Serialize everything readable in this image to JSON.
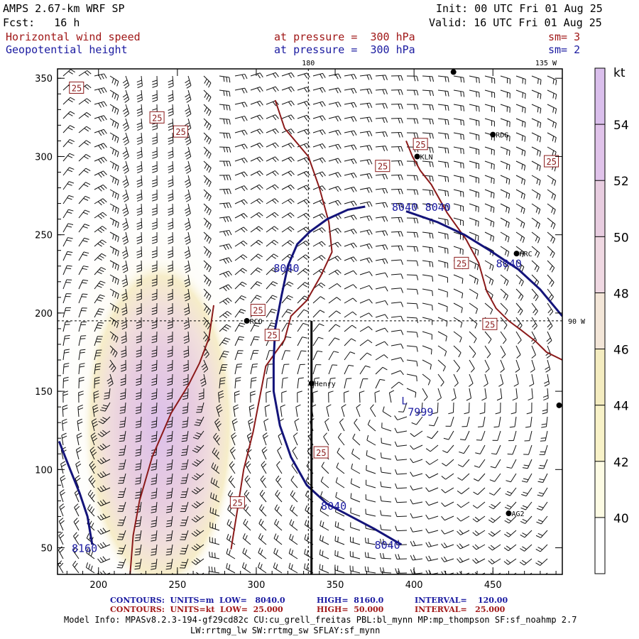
{
  "header": {
    "title": "AMPS 2.67-km WRF SP",
    "init": "Init: 00 UTC Fri 01 Aug 25",
    "fcst": "Fcst:   16 h",
    "valid": "Valid: 16 UTC Fri 01 Aug 25",
    "field1": "Horizontal wind speed",
    "field1_level": "at pressure =  300 hPa",
    "field1_sm": "sm= 3",
    "field2": "Geopotential height",
    "field2_level": "at pressure =  300 hPa",
    "field2_sm": "sm= 2"
  },
  "colors": {
    "height_contour": "#14147a",
    "speed_contour": "#8b1a1a",
    "accent_red": "#a01818",
    "accent_blue": "#1a1aa0"
  },
  "chart_data": {
    "type": "contour",
    "xlim": [
      174,
      494
    ],
    "ylim": [
      33,
      356
    ],
    "xticks": [
      200,
      250,
      300,
      350,
      400,
      450
    ],
    "yticks": [
      50,
      100,
      150,
      200,
      250,
      300,
      350
    ],
    "meridian_labels": [
      "180",
      "135 W",
      "90 W"
    ],
    "meridian_180_x": 333,
    "latline_y": 195,
    "cross_section_x": 335,
    "colorbar": {
      "unit": "kt",
      "levels": [
        38,
        40,
        42,
        44,
        46,
        48,
        50,
        52,
        54,
        56
      ],
      "labels": [
        "40",
        "42",
        "44",
        "46",
        "48",
        "50",
        "52",
        "54"
      ],
      "colors": [
        "#ffffff",
        "#fdfbe4",
        "#f8f2c8",
        "#f4ecc0",
        "#f3e6d8",
        "#efd8e2",
        "#e8cde0",
        "#e0c3ea",
        "#dabfec"
      ]
    },
    "height_contours": [
      {
        "label": "8040",
        "x": [
          311,
          312,
          316,
          320,
          326,
          334,
          345,
          358,
          369
        ],
        "y": [
          170,
          190,
          211,
          230,
          244,
          252,
          260,
          266,
          268
        ]
      },
      {
        "label": "8040",
        "x": [
          395,
          415,
          432,
          448,
          466,
          480,
          494
        ],
        "y": [
          265,
          258,
          250,
          240,
          228,
          215,
          198
        ]
      },
      {
        "label": "8040",
        "x": [
          311,
          311,
          315,
          322,
          332,
          345,
          360,
          375,
          392
        ],
        "y": [
          170,
          150,
          128,
          108,
          90,
          78,
          70,
          62,
          52
        ]
      },
      {
        "label": "8160",
        "x": [
          175,
          182,
          188,
          193,
          196
        ],
        "y": [
          118,
          100,
          85,
          70,
          52
        ]
      }
    ],
    "speed_contours": [
      {
        "label": "25",
        "x": [
          284,
          288,
          292,
          298,
          302,
          306,
          318,
          322,
          332,
          341,
          348,
          346,
          340,
          333,
          318,
          312
        ],
        "y": [
          49,
          74,
          100,
          124,
          145,
          166,
          183,
          198,
          208,
          224,
          239,
          258,
          280,
          300,
          318,
          336
        ]
      },
      {
        "label": "25",
        "x": [
          395,
          399,
          404,
          411,
          421,
          433,
          441,
          446,
          452,
          460,
          468,
          477,
          484,
          494
        ],
        "y": [
          310,
          300,
          291,
          282,
          264,
          247,
          232,
          214,
          203,
          195,
          189,
          182,
          175,
          170
        ]
      },
      {
        "label": "25",
        "x": [
          220,
          222,
          226,
          234,
          246,
          257,
          264,
          270,
          273
        ],
        "y": [
          33,
          58,
          80,
          108,
          136,
          154,
          168,
          184,
          205
        ]
      }
    ],
    "windspeed_max_region": {
      "label": "50 kt",
      "x": [
        222,
        252
      ],
      "y": [
        92,
        198
      ]
    },
    "contour_labels": [
      {
        "text": "8040",
        "x": 386,
        "y": 268
      },
      {
        "text": "8040",
        "x": 407,
        "y": 268
      },
      {
        "text": "8040",
        "x": 311,
        "y": 229
      },
      {
        "text": "8040",
        "x": 452,
        "y": 232
      },
      {
        "text": "8040",
        "x": 341,
        "y": 77
      },
      {
        "text": "8040",
        "x": 375,
        "y": 52
      },
      {
        "text": "8160",
        "x": 183,
        "y": 50
      },
      {
        "text": "7999",
        "x": 396,
        "y": 137
      }
    ],
    "speed_labels": [
      {
        "text": "25",
        "x": 182,
        "y": 344
      },
      {
        "text": "25",
        "x": 233,
        "y": 325
      },
      {
        "text": "25",
        "x": 248,
        "y": 316
      },
      {
        "text": "25",
        "x": 400,
        "y": 308
      },
      {
        "text": "25",
        "x": 376,
        "y": 294
      },
      {
        "text": "25",
        "x": 483,
        "y": 297
      },
      {
        "text": "25",
        "x": 426,
        "y": 232
      },
      {
        "text": "25",
        "x": 297,
        "y": 202
      },
      {
        "text": "25",
        "x": 306,
        "y": 186
      },
      {
        "text": "25",
        "x": 444,
        "y": 193
      },
      {
        "text": "25",
        "x": 337,
        "y": 111
      },
      {
        "text": "25",
        "x": 284,
        "y": 79
      }
    ],
    "low_center": {
      "label": "L",
      "x": 392,
      "y": 144
    },
    "stations": [
      {
        "name": "RDG",
        "x": 450,
        "y": 314
      },
      {
        "name": "KLN",
        "x": 402,
        "y": 300
      },
      {
        "name": "HRC",
        "x": 465,
        "y": 238
      },
      {
        "name": "RCO",
        "x": 294,
        "y": 195
      },
      {
        "name": "Henry",
        "x": 335,
        "y": 155
      },
      {
        "name": "AG2",
        "x": 460,
        "y": 72
      },
      {
        "name": "",
        "x": 425,
        "y": 354
      },
      {
        "name": "",
        "x": 492,
        "y": 141
      }
    ]
  },
  "footer": {
    "line1_a": "CONTOURS:  UNITS=m  LOW=   8040.0",
    "line1_b": "HIGH=  8160.0",
    "line1_c": "INTERVAL=    120.00",
    "line2_a": "CONTOURS:  UNITS=kt  LOW=  25.000",
    "line2_b": "HIGH=  50.000",
    "line2_c": "INTERVAL=   25.000",
    "model_info": "Model Info: MPASv8.2.3-194-gf29cd82c CU:cu_grell_freitas PBL:bl_mynn MP:mp_thompson SF:sf_noahmp 2.7",
    "model_info2": "LW:rrtmg_lw SW:rrtmg_sw SFLAY:sf_mynn"
  }
}
